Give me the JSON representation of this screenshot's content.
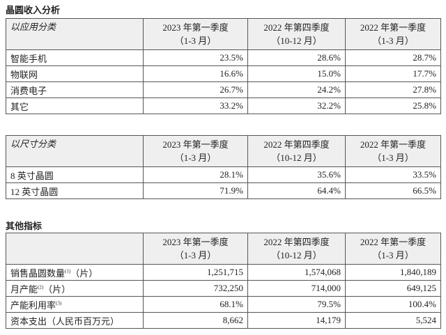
{
  "sections": [
    {
      "title": "晶圆收入分析",
      "tables": [
        {
          "category": "以应用分类",
          "periods": [
            {
              "name": "2023 年第一季度",
              "range": "（1-3 月）"
            },
            {
              "name": "2022 年第四季度",
              "range": "（10-12 月）"
            },
            {
              "name": "2022 年第一季度",
              "range": "（1-3 月）"
            }
          ],
          "rows": [
            {
              "label": "智能手机",
              "cells": [
                "23.5%",
                "28.6%",
                "28.7%"
              ]
            },
            {
              "label": "物联网",
              "cells": [
                "16.6%",
                "15.0%",
                "17.7%"
              ]
            },
            {
              "label": "消费电子",
              "cells": [
                "26.7%",
                "24.2%",
                "27.8%"
              ]
            },
            {
              "label": "其它",
              "cells": [
                "33.2%",
                "32.2%",
                "25.8%"
              ]
            }
          ]
        },
        {
          "category": "以尺寸分类",
          "periods": [
            {
              "name": "2023 年第一季度",
              "range": "（1-3 月）"
            },
            {
              "name": "2022 年第四季度",
              "range": "（10-12 月）"
            },
            {
              "name": "2022 年第一季度",
              "range": "（1-3 月）"
            }
          ],
          "rows": [
            {
              "label": "8 英寸晶圆",
              "cells": [
                "28.1%",
                "35.6%",
                "33.5%"
              ]
            },
            {
              "label": "12 英寸晶圆",
              "cells": [
                "71.9%",
                "64.4%",
                "66.5%"
              ]
            }
          ]
        }
      ]
    },
    {
      "title": "其他指标",
      "tables": [
        {
          "periods": [
            {
              "name": "2023 年第一季度",
              "range": "（1-3 月）"
            },
            {
              "name": "2022 年第四季度",
              "range": "（10-12 月）"
            },
            {
              "name": "2022 年第一季度",
              "range": "（1-3 月）"
            }
          ],
          "rows": [
            {
              "label": "销售晶圆数量",
              "note": "(1)",
              "unit": "（片）",
              "cells": [
                "1,251,715",
                "1,574,068",
                "1,840,189"
              ]
            },
            {
              "label": "月产能",
              "note": "(2)",
              "unit": "（片）",
              "cells": [
                "732,250",
                "714,000",
                "649,125"
              ]
            },
            {
              "label": "产能利用率",
              "note": "(3)",
              "cells": [
                "68.1%",
                "79.5%",
                "100.4%"
              ]
            },
            {
              "label": "资本支出（人民币百万元）",
              "cells": [
                "8,662",
                "14,179",
                "5,524"
              ]
            }
          ]
        }
      ]
    }
  ]
}
